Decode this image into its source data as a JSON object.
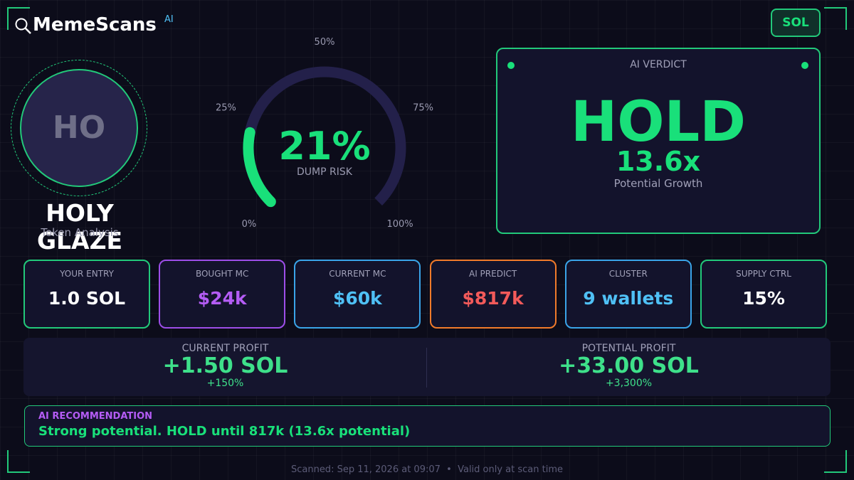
{
  "header": {
    "brand": "MemeScans",
    "brand_sup": "AI",
    "chain": "SOL"
  },
  "token": {
    "avatar": "HO",
    "name": "HOLY GLAZE",
    "subtitle": "Token Analysis"
  },
  "gauge": {
    "value": 21,
    "value_label": "21%",
    "label": "DUMP RISK",
    "color": "#19e07a",
    "range": [
      0,
      100
    ],
    "ticks": [
      {
        "value": 0,
        "label": "0%"
      },
      {
        "value": 25,
        "label": "25%"
      },
      {
        "value": 50,
        "label": "50%"
      },
      {
        "value": 75,
        "label": "75%"
      },
      {
        "value": 100,
        "label": "100%"
      }
    ]
  },
  "verdict": {
    "title": "AI VERDICT",
    "verdict": "HOLD",
    "multiple": "13.6x",
    "multiple_label": "Potential Growth"
  },
  "stats": [
    {
      "label": "YOUR ENTRY",
      "value": "1.0 SOL",
      "color": "#ffffff",
      "border": "#22c97a"
    },
    {
      "label": "BOUGHT MC",
      "value": "$24k",
      "color": "#b45cf5",
      "border": "#9d4ee8"
    },
    {
      "label": "CURRENT MC",
      "value": "$60k",
      "color": "#4fc0f5",
      "border": "#3aa4e8"
    },
    {
      "label": "AI PREDICT",
      "value": "$817k",
      "color": "#f25a5a",
      "border": "#f07a2a"
    },
    {
      "label": "CLUSTER",
      "value": "9 wallets",
      "color": "#4fc0f5",
      "border": "#3aa4e8"
    },
    {
      "label": "SUPPLY CTRL",
      "value": "15%",
      "color": "#ffffff",
      "border": "#22c97a"
    }
  ],
  "profits": [
    {
      "label": "CURRENT PROFIT",
      "value": "+1.50 SOL",
      "percent": "+150%"
    },
    {
      "label": "POTENTIAL PROFIT",
      "value": "+33.00 SOL",
      "percent": "+3,300%"
    }
  ],
  "recommendation": {
    "title": "AI RECOMMENDATION",
    "text": "Strong potential. HOLD until 817k (13.6x potential)"
  },
  "footer": {
    "text": "Scanned: Sep 11, 2026 at 09:07  •  Valid only at scan time"
  }
}
